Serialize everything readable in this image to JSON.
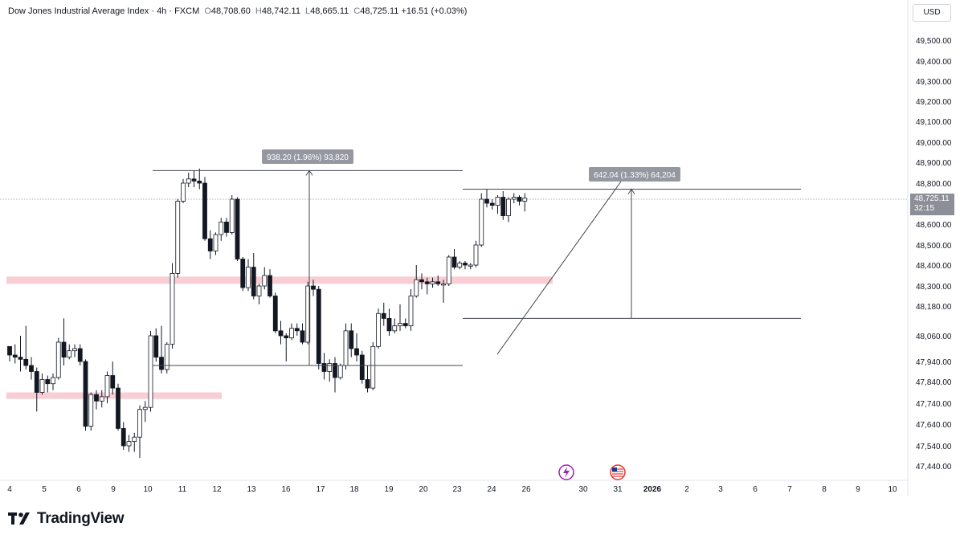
{
  "header": {
    "symbol": "Dow Jones Industrial Average Index · 4h · FXCM",
    "open_label": "O",
    "open": "48,708.60",
    "high_label": "H",
    "high": "48,742.11",
    "low_label": "L",
    "low": "48,665.11",
    "close_label": "C",
    "close": "48,725.11",
    "change": "+16.51 (+0.03%)"
  },
  "currency_button": "USD",
  "last_price": {
    "value": "48,725.11",
    "countdown": "32:15"
  },
  "brand": {
    "name": "TradingView"
  },
  "annotations": {
    "left_measure": "938.20 (1.96%) 93,820",
    "right_measure": "642.04 (1.33%) 64,204"
  },
  "events": [
    {
      "icon": "lightning-event-icon",
      "color": "#9c27b0"
    },
    {
      "icon": "us-flag-event-icon",
      "color": "#e53935"
    }
  ],
  "colors": {
    "candle_up_fill": "#ffffff",
    "candle_down_fill": "#131722",
    "zone": "#f7c5cc",
    "line": "#131722",
    "tag_bg": "#9598a1"
  },
  "chart_data": {
    "type": "candlestick",
    "title": "",
    "ylim": [
      47380,
      49600
    ],
    "y_ticks": [
      "49,500.00",
      "49,400.00",
      "49,300.00",
      "49,200.00",
      "49,100.00",
      "49,000.00",
      "48,900.00",
      "48,800.00",
      "48,700.00",
      "48,600.00",
      "48,500.00",
      "48,400.00",
      "48,300.00",
      "48,180.00",
      "48,060.00",
      "47,940.00",
      "47,840.00",
      "47,740.00",
      "47,640.00",
      "47,540.00",
      "47,440.00"
    ],
    "x_ticks": [
      "4",
      "5",
      "6",
      "9",
      "10",
      "11",
      "12",
      "13",
      "16",
      "17",
      "18",
      "19",
      "20",
      "23",
      "24",
      "26",
      "30",
      "31",
      "2026",
      "2",
      "3",
      "6",
      "7",
      "8",
      "9",
      "10"
    ],
    "candles": [
      [
        48010,
        48000,
        47940,
        47970
      ],
      [
        47970,
        48020,
        47930,
        47960
      ],
      [
        47960,
        48060,
        47890,
        47950
      ],
      [
        47950,
        48100,
        47900,
        47920
      ],
      [
        47920,
        47960,
        47850,
        47890
      ],
      [
        47890,
        47910,
        47700,
        47790
      ],
      [
        47790,
        47880,
        47780,
        47850
      ],
      [
        47850,
        47870,
        47790,
        47830
      ],
      [
        47830,
        47880,
        47800,
        47860
      ],
      [
        47860,
        48050,
        47850,
        48030
      ],
      [
        48030,
        48130,
        47920,
        47960
      ],
      [
        47960,
        48020,
        47950,
        47990
      ],
      [
        47990,
        48020,
        47960,
        48000
      ],
      [
        48000,
        48020,
        47920,
        47940
      ],
      [
        47940,
        47950,
        47610,
        47630
      ],
      [
        47630,
        47790,
        47610,
        47780
      ],
      [
        47780,
        47800,
        47710,
        47750
      ],
      [
        47750,
        47800,
        47720,
        47770
      ],
      [
        47770,
        47890,
        47740,
        47870
      ],
      [
        47870,
        47940,
        47780,
        47810
      ],
      [
        47810,
        47830,
        47610,
        47620
      ],
      [
        47620,
        47650,
        47520,
        47540
      ],
      [
        47540,
        47590,
        47510,
        47560
      ],
      [
        47560,
        47600,
        47510,
        47580
      ],
      [
        47580,
        47730,
        47480,
        47710
      ],
      [
        47710,
        47750,
        47650,
        47720
      ],
      [
        47720,
        48080,
        47700,
        48060
      ],
      [
        48060,
        48090,
        47940,
        47960
      ],
      [
        47960,
        48100,
        47880,
        47900
      ],
      [
        47900,
        48030,
        47880,
        48020
      ],
      [
        48020,
        48410,
        48000,
        48360
      ],
      [
        48360,
        48720,
        48340,
        48710
      ],
      [
        48710,
        48820,
        48700,
        48800
      ],
      [
        48800,
        48850,
        48780,
        48820
      ],
      [
        48820,
        48860,
        48780,
        48810
      ],
      [
        48810,
        48870,
        48770,
        48800
      ],
      [
        48800,
        48830,
        48520,
        48530
      ],
      [
        48530,
        48570,
        48430,
        48470
      ],
      [
        48470,
        48560,
        48450,
        48550
      ],
      [
        48550,
        48630,
        48520,
        48610
      ],
      [
        48610,
        48630,
        48540,
        48560
      ],
      [
        48560,
        48740,
        48550,
        48720
      ],
      [
        48720,
        48730,
        48420,
        48430
      ],
      [
        48430,
        48440,
        48270,
        48290
      ],
      [
        48290,
        48430,
        48270,
        48390
      ],
      [
        48390,
        48460,
        48220,
        48240
      ],
      [
        48240,
        48310,
        48190,
        48300
      ],
      [
        48300,
        48390,
        48280,
        48350
      ],
      [
        48350,
        48380,
        48230,
        48240
      ],
      [
        48240,
        48260,
        48070,
        48080
      ],
      [
        48080,
        48120,
        48020,
        48060
      ],
      [
        48060,
        48070,
        47940,
        48050
      ],
      [
        48050,
        48110,
        48040,
        48090
      ],
      [
        48090,
        48110,
        48060,
        48080
      ],
      [
        48080,
        48110,
        48020,
        48030
      ],
      [
        48030,
        48320,
        48020,
        48300
      ],
      [
        48300,
        48330,
        48240,
        48280
      ],
      [
        48280,
        48300,
        47900,
        47930
      ],
      [
        47930,
        47980,
        47850,
        47890
      ],
      [
        47890,
        47950,
        47840,
        47930
      ],
      [
        47930,
        47960,
        47790,
        47860
      ],
      [
        47860,
        47930,
        47850,
        47920
      ],
      [
        47920,
        48110,
        47900,
        48080
      ],
      [
        48080,
        48110,
        47960,
        48000
      ],
      [
        48000,
        48070,
        47940,
        47970
      ],
      [
        47970,
        47990,
        47830,
        47850
      ],
      [
        47850,
        47920,
        47790,
        47810
      ],
      [
        47810,
        48030,
        47800,
        48010
      ],
      [
        48010,
        48170,
        48000,
        48150
      ],
      [
        48150,
        48200,
        48100,
        48130
      ],
      [
        48130,
        48170,
        48060,
        48080
      ],
      [
        48080,
        48130,
        48070,
        48100
      ],
      [
        48100,
        48190,
        48080,
        48110
      ],
      [
        48110,
        48130,
        48090,
        48100
      ],
      [
        48100,
        48280,
        48080,
        48240
      ],
      [
        48240,
        48400,
        48230,
        48330
      ],
      [
        48330,
        48360,
        48280,
        48320
      ],
      [
        48320,
        48340,
        48250,
        48310
      ],
      [
        48310,
        48340,
        48290,
        48320
      ],
      [
        48320,
        48350,
        48300,
        48310
      ],
      [
        48310,
        48330,
        48200,
        48310
      ],
      [
        48310,
        48450,
        48300,
        48440
      ],
      [
        48440,
        48480,
        48380,
        48390
      ],
      [
        48390,
        48420,
        48380,
        48410
      ],
      [
        48410,
        48420,
        48380,
        48400
      ],
      [
        48400,
        48410,
        48380,
        48400
      ],
      [
        48400,
        48520,
        48390,
        48500
      ],
      [
        48500,
        48750,
        48490,
        48720
      ],
      [
        48720,
        48770,
        48680,
        48700
      ],
      [
        48700,
        48720,
        48670,
        48690
      ],
      [
        48690,
        48740,
        48650,
        48730
      ],
      [
        48730,
        48760,
        48620,
        48640
      ],
      [
        48640,
        48730,
        48610,
        48720
      ],
      [
        48720,
        48750,
        48700,
        48730
      ],
      [
        48730,
        48740,
        48690,
        48710
      ],
      [
        48710,
        48750,
        48660,
        48725
      ]
    ],
    "zones": [
      {
        "from": 48310,
        "to": 48345
      },
      {
        "from": 47760,
        "to": 47790
      }
    ],
    "measures": [
      {
        "label_ref": "left_measure",
        "low": 47920,
        "high": 48860
      },
      {
        "label_ref": "right_measure",
        "low": 48130,
        "high": 48770
      }
    ]
  }
}
